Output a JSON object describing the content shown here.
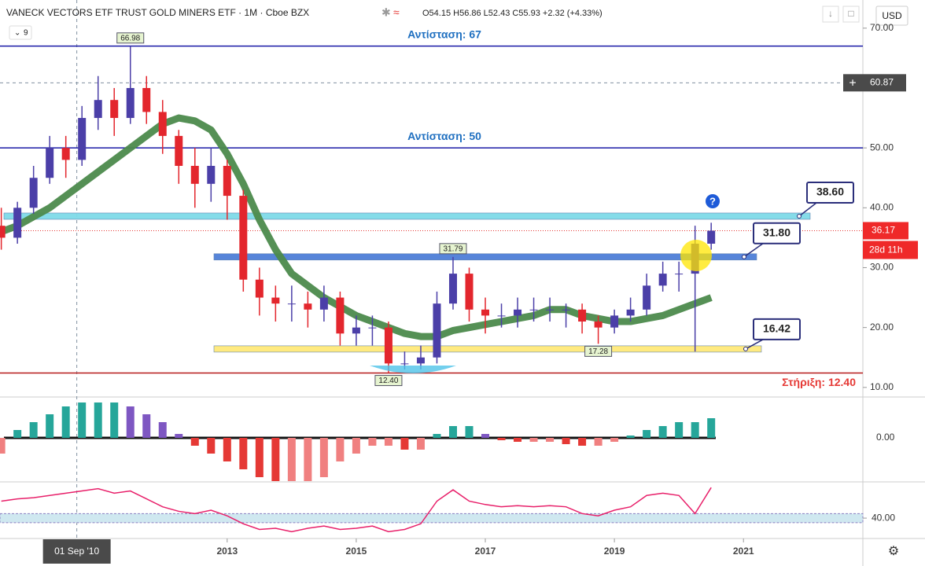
{
  "header": {
    "title": "VANECK VECTORS ETF TRUST GOLD MINERS ETF · 1M · Cboe BZX",
    "ohlc": "O54.15 H56.86 L52.43 C55.93 +2.32 (+4.33%)",
    "indicator": "9",
    "currency": "USD",
    "countdown": "28d 11h"
  },
  "chart_data": {
    "type": "candlestick",
    "x": [
      2009.5,
      2009.75,
      2010,
      2010.25,
      2010.5,
      2010.75,
      2011,
      2011.25,
      2011.5,
      2011.75,
      2012,
      2012.25,
      2012.5,
      2012.75,
      2013,
      2013.25,
      2013.5,
      2013.75,
      2014,
      2014.25,
      2014.5,
      2014.75,
      2015,
      2015.25,
      2015.5,
      2015.75,
      2016,
      2016.25,
      2016.5,
      2016.75,
      2017,
      2017.25,
      2017.5,
      2017.75,
      2018,
      2018.25,
      2018.5,
      2018.75,
      2019,
      2019.25,
      2019.5,
      2019.75,
      2020,
      2020.25,
      2020.5
    ],
    "open": [
      37,
      35,
      40,
      45,
      50,
      48,
      55,
      58,
      55,
      60,
      56,
      52,
      47,
      44,
      47,
      42,
      28,
      25,
      24,
      24,
      23,
      25,
      19,
      20,
      20,
      14,
      14,
      15,
      24,
      29,
      23,
      22,
      22,
      23,
      23,
      23,
      23,
      21,
      20,
      22,
      23,
      27,
      29,
      29,
      34
    ],
    "high": [
      40,
      41,
      47,
      52,
      52,
      57,
      62,
      60,
      66.98,
      62,
      58,
      53,
      50,
      50,
      48,
      43,
      30,
      27,
      27,
      26,
      27,
      26,
      22,
      22,
      21,
      16,
      17,
      26,
      31.79,
      30,
      25,
      24,
      25,
      25,
      25,
      24,
      24,
      22,
      23,
      25,
      29,
      31,
      31,
      37,
      37.5
    ],
    "low": [
      33,
      34,
      39,
      44,
      45,
      47,
      53,
      52,
      54,
      54,
      49,
      44,
      40,
      41,
      38,
      26,
      22,
      21,
      21,
      20,
      21,
      17,
      17,
      17,
      12.4,
      13,
      13,
      14,
      23,
      21,
      19,
      20,
      20,
      21,
      21,
      20,
      19,
      17.28,
      19,
      21,
      22,
      26,
      26,
      16,
      33
    ],
    "close": [
      35,
      40,
      45,
      50,
      48,
      55,
      58,
      55,
      60,
      56,
      52,
      47,
      44,
      47,
      42,
      28,
      25,
      24,
      24,
      23,
      25,
      19,
      20,
      20,
      14,
      14,
      15,
      24,
      29,
      23,
      22,
      22,
      23,
      23,
      23,
      23,
      21,
      20,
      22,
      23,
      27,
      29,
      29,
      34,
      36.17
    ],
    "high_labels": [
      null,
      null,
      null,
      null,
      null,
      null,
      null,
      null,
      "66.98",
      null,
      null,
      null,
      null,
      null,
      null,
      null,
      null,
      null,
      null,
      null,
      null,
      null,
      null,
      null,
      null,
      null,
      null,
      null,
      "31.79",
      null,
      null,
      null,
      null,
      null,
      null,
      null,
      null,
      null,
      null,
      null,
      null,
      null,
      null,
      null,
      null
    ],
    "low_labels": [
      null,
      null,
      null,
      null,
      null,
      null,
      null,
      null,
      null,
      null,
      null,
      null,
      null,
      null,
      null,
      null,
      null,
      null,
      null,
      null,
      null,
      null,
      null,
      null,
      "12.40",
      null,
      null,
      null,
      null,
      null,
      null,
      null,
      null,
      null,
      null,
      null,
      null,
      "17.28",
      null,
      null,
      null,
      null,
      null,
      null,
      null
    ],
    "ma": [
      36,
      37,
      38.5,
      40,
      42,
      44,
      46,
      48,
      50,
      52,
      54,
      55,
      54.5,
      53,
      49,
      44,
      38,
      33,
      29,
      27,
      25,
      23.5,
      22,
      21,
      20,
      19,
      18.5,
      18.5,
      19.5,
      20,
      20.5,
      21,
      21.5,
      22,
      23,
      23,
      22,
      21.5,
      21,
      21,
      21.5,
      22,
      23,
      24,
      25
    ],
    "colors": {
      "up": "#4b3fa8",
      "down": "#e3262d",
      "ma": "#4c8a4c"
    },
    "xlim": [
      2009.48,
      2022.85
    ],
    "xticks": [
      2013,
      2015,
      2017,
      2019,
      2021
    ],
    "ylim": [
      8.4,
      74.7
    ],
    "yticks": [
      {
        "value": 10,
        "label": "10.00"
      },
      {
        "value": 20,
        "label": "20.00"
      },
      {
        "value": 30,
        "label": "30.00"
      },
      {
        "value": 40,
        "label": "40.00"
      },
      {
        "value": 50,
        "label": "50.00"
      },
      {
        "value": 60,
        "label": "60.00"
      },
      {
        "value": 70,
        "label": "70.00"
      }
    ],
    "levels": [
      {
        "label": "Αντίσταση: 67",
        "value": 67,
        "color": "#1a1aa6"
      },
      {
        "label": "Αντίσταση: 50",
        "value": 50,
        "color": "#1a1aa6"
      },
      {
        "label": "Στήριξη: 12.40",
        "value": 12.4,
        "color": "#b71c1c"
      }
    ],
    "zones": [
      {
        "value": 38.6,
        "label": "38.60",
        "color": "#7fdbe8"
      },
      {
        "value": 31.8,
        "label": "31.80",
        "color": "#4f7fd8"
      },
      {
        "value": 16.42,
        "label": "16.42",
        "color": "#ffe97a"
      }
    ],
    "last_price": 36.17,
    "crosshair": {
      "price": 60.87,
      "date": "01 Sep '10",
      "x": 2010.67
    },
    "macd": {
      "values": [
        -2,
        1,
        2,
        3,
        4,
        4.5,
        4.5,
        4.5,
        4,
        3,
        2,
        0.5,
        -1,
        -2,
        -3,
        -4,
        -5,
        -5.5,
        -5.5,
        -5.5,
        -5,
        -3,
        -2,
        -1,
        -1,
        -1.5,
        -1.5,
        0.5,
        1.5,
        1.5,
        0.5,
        -0.3,
        -0.5,
        -0.5,
        -0.5,
        -0.8,
        -1,
        -1,
        -0.5,
        0.3,
        1,
        1.5,
        2,
        2,
        2.5
      ],
      "ylim": [
        -5.6,
        5.2
      ],
      "yticks": [
        {
          "value": 0,
          "label": "0.00"
        }
      ]
    },
    "rsi": {
      "values": [
        55,
        57,
        58,
        60,
        62,
        64,
        66,
        62,
        64,
        57,
        50,
        46,
        44,
        47,
        42,
        35,
        30,
        31,
        28,
        31,
        33,
        30,
        31,
        33,
        28,
        30,
        35,
        55,
        65,
        55,
        52,
        50,
        51,
        50,
        51,
        50,
        44,
        42,
        47,
        50,
        60,
        62,
        60,
        44,
        67
      ],
      "ylim": [
        22,
        72
      ],
      "yticks": [
        {
          "value": 40,
          "label": "40.00"
        }
      ],
      "band": [
        36,
        44
      ],
      "color": "#e8206a"
    }
  }
}
